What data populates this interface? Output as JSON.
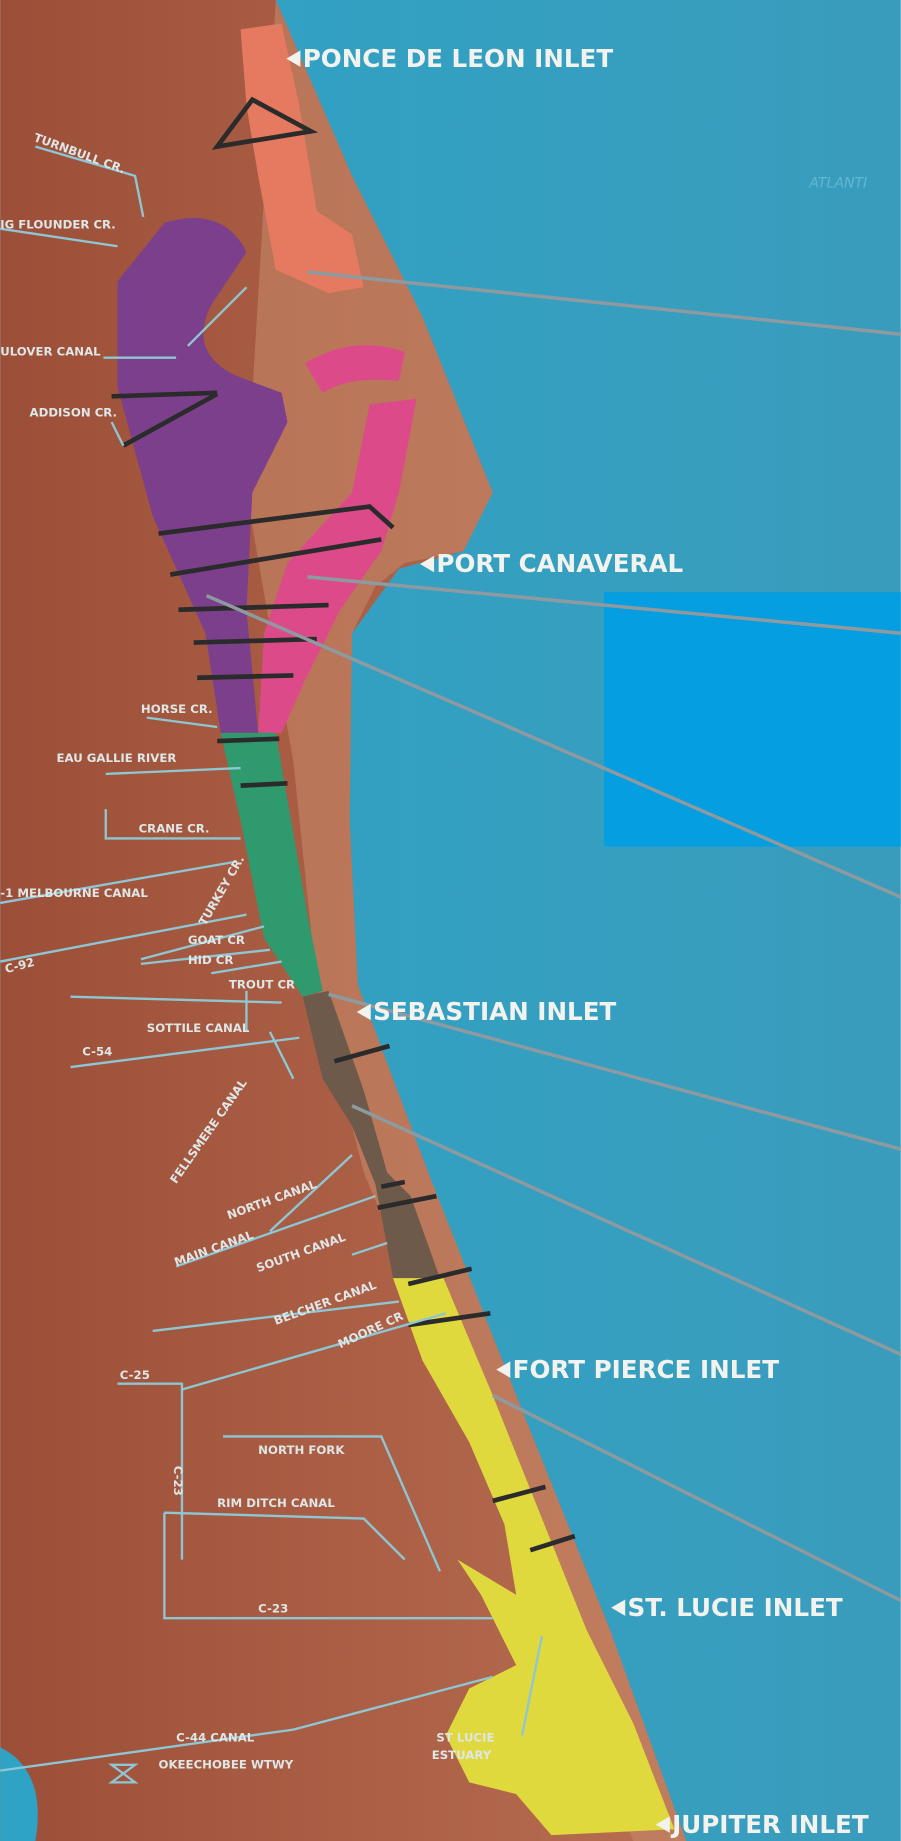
{
  "inlets": [
    "PONCE DE LEON INLET",
    "PORT CANAVERAL",
    "SEBASTIAN INLET",
    "FORT PIERCE INLET",
    "ST. LUCIE INLET",
    "JUPITER INLET"
  ],
  "ocean": "ATLANTI",
  "waterways": [
    "TURNBULL CR.",
    "IG FLOUNDER CR.",
    "ULOVER CANAL",
    "ADDISON CR.",
    "HORSE CR.",
    "EAU GALLIE RIVER",
    "CRANE CR.",
    "-1 MELBOURNE CANAL",
    "TURKEY CR.",
    "C-92",
    "GOAT CR",
    "HID CR",
    "TROUT CR",
    "SOTTILE CANAL",
    "C-54",
    "FELLSMERE CANAL",
    "NORTH CANAL",
    "MAIN CANAL",
    "SOUTH CANAL",
    "BELCHER CANAL",
    "MOORE CR",
    "C-25",
    "C-23",
    "NORTH FORK",
    "RIM DITCH CANAL",
    "C-23",
    "C-44 CANAL",
    "OKEECHOBEE WTWY",
    "ST LUCIE",
    "ESTUARY"
  ]
}
